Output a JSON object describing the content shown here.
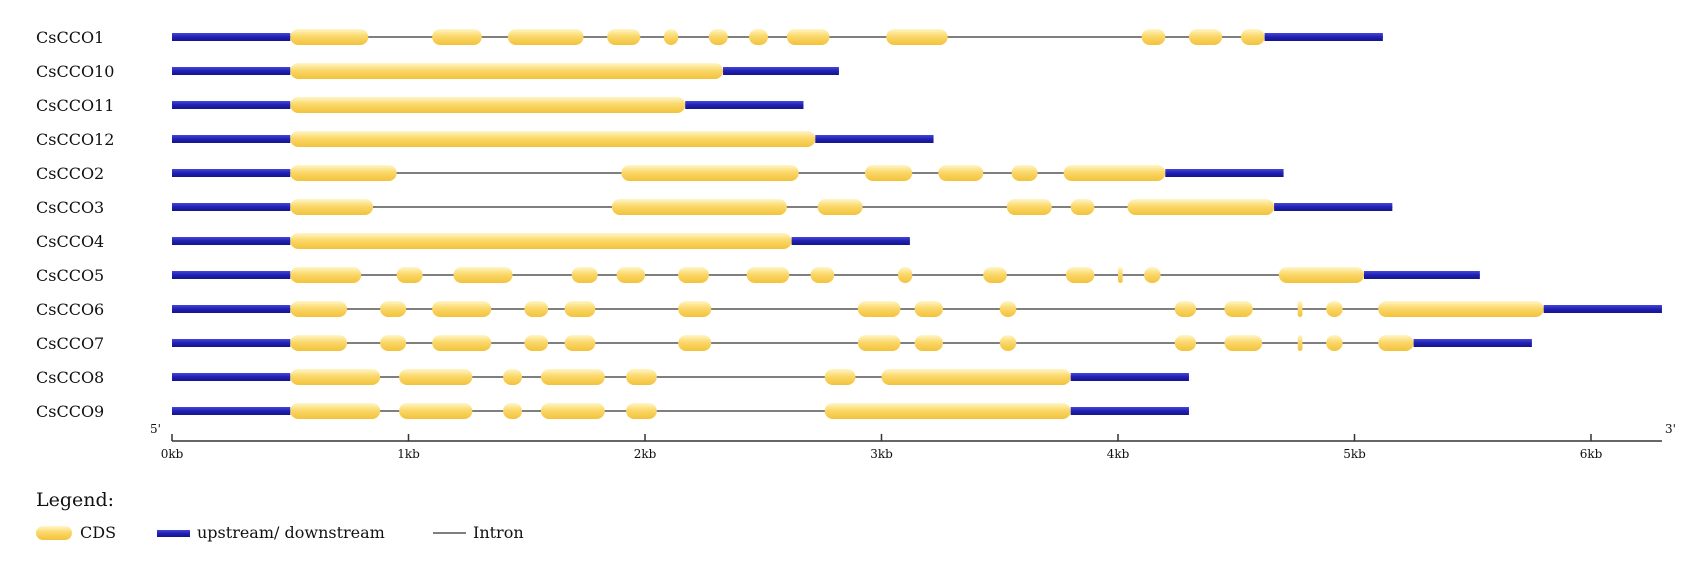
{
  "chart_data": {
    "type": "gene-structure",
    "x_unit": "kb",
    "x_range": [
      0,
      6.3
    ],
    "ticks": [
      {
        "value": 0,
        "label": "0kb"
      },
      {
        "value": 1,
        "label": "1kb"
      },
      {
        "value": 2,
        "label": "2kb"
      },
      {
        "value": 3,
        "label": "3kb"
      },
      {
        "value": 4,
        "label": "4kb"
      },
      {
        "value": 5,
        "label": "5kb"
      },
      {
        "value": 6,
        "label": "6kb"
      }
    ],
    "five_prime_label": "5'",
    "three_prime_label": "3'",
    "genes": [
      {
        "name": "CsCCO1",
        "length": 5.12,
        "utr5_end": 0.5,
        "utr3_start": 4.62,
        "cds": [
          [
            0.5,
            0.83
          ],
          [
            1.1,
            1.31
          ],
          [
            1.42,
            1.74
          ],
          [
            1.84,
            1.98
          ],
          [
            2.08,
            2.14
          ],
          [
            2.27,
            2.35
          ],
          [
            2.44,
            2.52
          ],
          [
            2.6,
            2.78
          ],
          [
            3.02,
            3.28
          ],
          [
            4.1,
            4.2
          ],
          [
            4.3,
            4.44
          ],
          [
            4.52,
            4.62
          ]
        ]
      },
      {
        "name": "CsCCO10",
        "length": 2.82,
        "utr5_end": 0.5,
        "utr3_start": 2.33,
        "cds": [
          [
            0.5,
            2.33
          ]
        ]
      },
      {
        "name": "CsCCO11",
        "length": 2.67,
        "utr5_end": 0.5,
        "utr3_start": 2.17,
        "cds": [
          [
            0.5,
            2.17
          ]
        ]
      },
      {
        "name": "CsCCO12",
        "length": 3.22,
        "utr5_end": 0.5,
        "utr3_start": 2.72,
        "cds": [
          [
            0.5,
            2.72
          ]
        ]
      },
      {
        "name": "CsCCO2",
        "length": 4.7,
        "utr5_end": 0.5,
        "utr3_start": 4.2,
        "cds": [
          [
            0.5,
            0.95
          ],
          [
            1.9,
            2.65
          ],
          [
            2.93,
            3.13
          ],
          [
            3.24,
            3.43
          ],
          [
            3.55,
            3.66
          ],
          [
            3.77,
            4.2
          ]
        ]
      },
      {
        "name": "CsCCO3",
        "length": 5.16,
        "utr5_end": 0.5,
        "utr3_start": 4.66,
        "cds": [
          [
            0.5,
            0.85
          ],
          [
            1.86,
            2.6
          ],
          [
            2.73,
            2.92
          ],
          [
            3.53,
            3.72
          ],
          [
            3.8,
            3.9
          ],
          [
            4.04,
            4.66
          ]
        ]
      },
      {
        "name": "CsCCO4",
        "length": 3.12,
        "utr5_end": 0.5,
        "utr3_start": 2.62,
        "cds": [
          [
            0.5,
            2.62
          ]
        ]
      },
      {
        "name": "CsCCO5",
        "length": 5.53,
        "utr5_end": 0.5,
        "utr3_start": 5.04,
        "cds": [
          [
            0.5,
            0.8
          ],
          [
            0.95,
            1.06
          ],
          [
            1.19,
            1.44
          ],
          [
            1.69,
            1.8
          ],
          [
            1.88,
            2.0
          ],
          [
            2.14,
            2.27
          ],
          [
            2.43,
            2.61
          ],
          [
            2.7,
            2.8
          ],
          [
            3.07,
            3.13
          ],
          [
            3.43,
            3.53
          ],
          [
            3.78,
            3.9
          ],
          [
            4.0,
            4.02
          ],
          [
            4.11,
            4.18
          ],
          [
            4.68,
            5.04
          ]
        ]
      },
      {
        "name": "CsCCO6",
        "length": 6.3,
        "utr5_end": 0.5,
        "utr3_start": 5.8,
        "cds": [
          [
            0.5,
            0.74
          ],
          [
            0.88,
            0.99
          ],
          [
            1.1,
            1.35
          ],
          [
            1.49,
            1.59
          ],
          [
            1.66,
            1.79
          ],
          [
            2.14,
            2.28
          ],
          [
            2.9,
            3.08
          ],
          [
            3.14,
            3.26
          ],
          [
            3.5,
            3.57
          ],
          [
            4.24,
            4.33
          ],
          [
            4.45,
            4.57
          ],
          [
            4.76,
            4.78
          ],
          [
            4.88,
            4.95
          ],
          [
            5.1,
            5.8
          ]
        ]
      },
      {
        "name": "CsCCO7",
        "length": 5.75,
        "utr5_end": 0.5,
        "utr3_start": 5.25,
        "cds": [
          [
            0.5,
            0.74
          ],
          [
            0.88,
            0.99
          ],
          [
            1.1,
            1.35
          ],
          [
            1.49,
            1.59
          ],
          [
            1.66,
            1.79
          ],
          [
            2.14,
            2.28
          ],
          [
            2.9,
            3.08
          ],
          [
            3.14,
            3.26
          ],
          [
            3.5,
            3.57
          ],
          [
            4.24,
            4.33
          ],
          [
            4.45,
            4.61
          ],
          [
            4.76,
            4.78
          ],
          [
            4.88,
            4.95
          ],
          [
            5.1,
            5.25
          ]
        ]
      },
      {
        "name": "CsCCO8",
        "length": 4.3,
        "utr5_end": 0.5,
        "utr3_start": 3.8,
        "cds": [
          [
            0.5,
            0.88
          ],
          [
            0.96,
            1.27
          ],
          [
            1.4,
            1.48
          ],
          [
            1.56,
            1.83
          ],
          [
            1.92,
            2.05
          ],
          [
            2.76,
            2.89
          ],
          [
            3.0,
            3.8
          ]
        ]
      },
      {
        "name": "CsCCO9",
        "length": 4.3,
        "utr5_end": 0.5,
        "utr3_start": 3.8,
        "cds": [
          [
            0.5,
            0.88
          ],
          [
            0.96,
            1.27
          ],
          [
            1.4,
            1.48
          ],
          [
            1.56,
            1.83
          ],
          [
            1.92,
            2.05
          ],
          [
            2.76,
            3.8
          ]
        ]
      }
    ]
  },
  "legend": {
    "title": "Legend:",
    "items": [
      {
        "key": "cds",
        "label": "CDS",
        "color": "#f6c94a"
      },
      {
        "key": "utr",
        "label": "upstream/ downstream",
        "color": "#1f1fa8"
      },
      {
        "key": "intron",
        "label": "Intron",
        "color": "#7a7a7a"
      }
    ]
  },
  "colors": {
    "cds_light": "#fff4b8",
    "cds": "#f6c94a",
    "utr_dark": "#18189a",
    "utr_light": "#3a3ad8",
    "intron": "#7f7f7f",
    "axis": "#333333"
  }
}
